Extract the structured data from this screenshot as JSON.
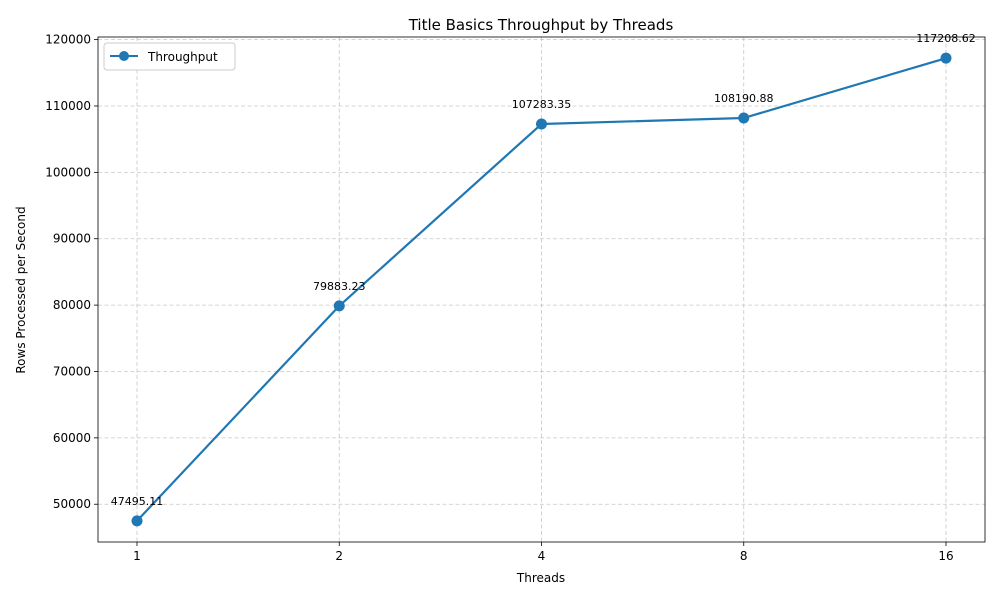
{
  "chart_data": {
    "type": "line",
    "title": "Title Basics Throughput by Threads",
    "xlabel": "Threads",
    "ylabel": "Rows Processed per Second",
    "categories": [
      "1",
      "2",
      "4",
      "8",
      "16"
    ],
    "series": [
      {
        "name": "Throughput",
        "values": [
          47495.11,
          79883.23,
          107283.35,
          108190.88,
          117208.62
        ],
        "labels": [
          "47495.11",
          "79883.23",
          "107283.35",
          "108190.88",
          "117208.62"
        ]
      }
    ],
    "y_ticks": [
      "50000",
      "60000",
      "70000",
      "80000",
      "90000",
      "100000",
      "110000",
      "120000"
    ],
    "y_tick_values": [
      50000,
      60000,
      70000,
      80000,
      90000,
      100000,
      110000,
      120000
    ],
    "ylim": [
      44309.43,
      120394.3
    ],
    "grid": true,
    "grid_style": "dashed",
    "legend_position": "top-left",
    "line_color": "#1f77b4"
  }
}
